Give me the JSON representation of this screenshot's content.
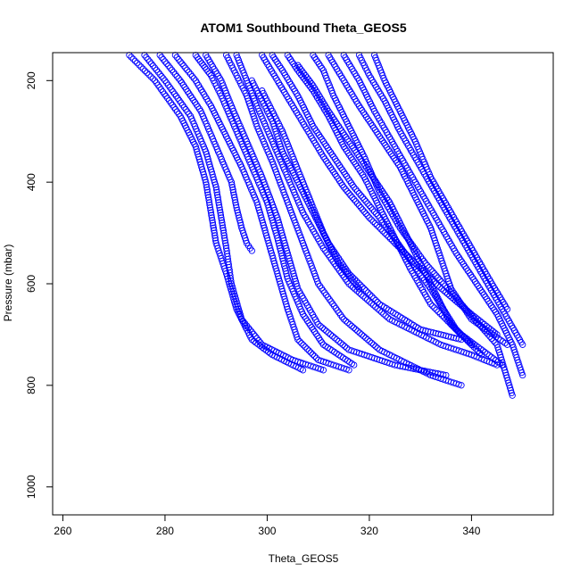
{
  "chart_data": {
    "type": "scatter",
    "title": "ATOM1 Southbound Theta_GEOS5",
    "xlabel": "Theta_GEOS5",
    "ylabel": "Pressure (mbar)",
    "xlim": [
      258,
      356
    ],
    "ylim": [
      1055,
      145
    ],
    "y_reversed": true,
    "x_ticks": [
      260,
      280,
      300,
      320,
      340
    ],
    "y_ticks": [
      200,
      400,
      600,
      800,
      1000
    ],
    "marker": "open-circle",
    "color": "#0000ff",
    "series": [
      {
        "x": [
          273,
          278,
          283,
          286,
          288,
          289,
          290,
          292,
          294,
          297,
          301,
          307
        ],
        "y": [
          150,
          200,
          270,
          330,
          400,
          460,
          520,
          580,
          650,
          710,
          740,
          770
        ]
      },
      {
        "x": [
          276,
          280,
          285,
          288,
          290,
          291,
          292,
          293,
          295,
          299,
          305,
          311
        ],
        "y": [
          150,
          200,
          270,
          340,
          410,
          470,
          530,
          600,
          670,
          720,
          750,
          770
        ]
      },
      {
        "x": [
          279,
          283,
          287,
          290,
          293,
          294,
          295,
          296,
          297
        ],
        "y": [
          150,
          200,
          260,
          330,
          400,
          450,
          490,
          520,
          535
        ]
      },
      {
        "x": [
          282,
          286,
          289,
          292,
          295,
          298,
          300,
          302,
          304,
          306,
          310,
          316
        ],
        "y": [
          150,
          200,
          250,
          310,
          370,
          440,
          510,
          580,
          650,
          710,
          750,
          770
        ]
      },
      {
        "x": [
          286,
          289,
          291,
          294,
          297,
          300,
          302,
          304,
          307,
          311,
          317
        ],
        "y": [
          150,
          190,
          230,
          300,
          370,
          440,
          510,
          590,
          660,
          720,
          760
        ]
      },
      {
        "x": [
          288,
          291,
          293,
          296,
          299,
          302,
          304,
          306,
          310,
          316,
          325,
          335
        ],
        "y": [
          150,
          200,
          250,
          320,
          390,
          470,
          540,
          610,
          680,
          730,
          760,
          780
        ]
      },
      {
        "x": [
          292,
          294,
          296,
          298,
          301,
          304,
          307,
          310,
          315,
          322,
          332,
          338
        ],
        "y": [
          150,
          190,
          230,
          290,
          360,
          440,
          520,
          600,
          670,
          730,
          780,
          800
        ]
      },
      {
        "x": [
          294,
          296,
          298,
          301,
          304,
          307,
          311,
          316,
          324,
          334,
          340,
          345
        ],
        "y": [
          150,
          200,
          250,
          320,
          390,
          460,
          530,
          600,
          670,
          720,
          740,
          760
        ]
      },
      {
        "x": [
          297,
          299,
          301,
          303,
          306,
          309,
          312,
          316,
          322,
          330,
          338
        ],
        "y": [
          200,
          240,
          280,
          340,
          400,
          460,
          520,
          580,
          640,
          690,
          710
        ]
      },
      {
        "x": [
          299,
          301,
          303,
          305,
          307,
          309,
          311,
          314,
          318
        ],
        "y": [
          220,
          260,
          300,
          350,
          400,
          450,
          500,
          560,
          610
        ]
      },
      {
        "x": [
          299,
          302,
          305,
          308,
          311,
          315,
          320,
          326,
          333,
          340,
          345
        ],
        "y": [
          150,
          200,
          250,
          300,
          350,
          410,
          470,
          530,
          600,
          660,
          700
        ]
      },
      {
        "x": [
          301,
          303,
          306,
          309,
          313,
          317,
          322,
          327,
          332,
          337,
          342
        ],
        "y": [
          150,
          180,
          230,
          290,
          350,
          410,
          470,
          540,
          610,
          690,
          740
        ]
      },
      {
        "x": [
          304,
          306,
          309,
          312,
          315,
          319,
          322,
          325,
          328,
          332,
          338,
          346
        ],
        "y": [
          150,
          180,
          220,
          270,
          330,
          390,
          450,
          510,
          570,
          640,
          700,
          760
        ]
      },
      {
        "x": [
          306,
          309,
          312,
          316,
          320,
          324,
          327,
          330,
          333,
          336,
          340
        ],
        "y": [
          170,
          210,
          260,
          320,
          380,
          440,
          500,
          560,
          620,
          680,
          720
        ]
      },
      {
        "x": [
          309,
          311,
          313,
          316,
          319,
          322,
          326,
          331,
          338,
          345,
          348
        ],
        "y": [
          150,
          180,
          230,
          290,
          350,
          420,
          490,
          560,
          640,
          720,
          820
        ]
      },
      {
        "x": [
          312,
          315,
          318,
          322,
          326,
          329,
          332,
          334,
          336,
          340,
          347
        ],
        "y": [
          150,
          200,
          250,
          310,
          370,
          430,
          490,
          550,
          610,
          670,
          720
        ]
      },
      {
        "x": [
          315,
          318,
          321,
          325,
          329,
          333,
          337,
          341,
          345,
          348,
          350
        ],
        "y": [
          150,
          200,
          260,
          330,
          400,
          470,
          540,
          600,
          660,
          720,
          780
        ]
      },
      {
        "x": [
          318,
          320,
          323,
          326,
          330,
          334,
          338,
          342,
          346,
          350
        ],
        "y": [
          150,
          190,
          240,
          300,
          370,
          440,
          510,
          580,
          650,
          720
        ]
      },
      {
        "x": [
          321,
          323,
          326,
          329,
          332,
          336,
          340,
          344,
          347
        ],
        "y": [
          150,
          200,
          260,
          320,
          390,
          460,
          530,
          600,
          650
        ]
      }
    ]
  }
}
